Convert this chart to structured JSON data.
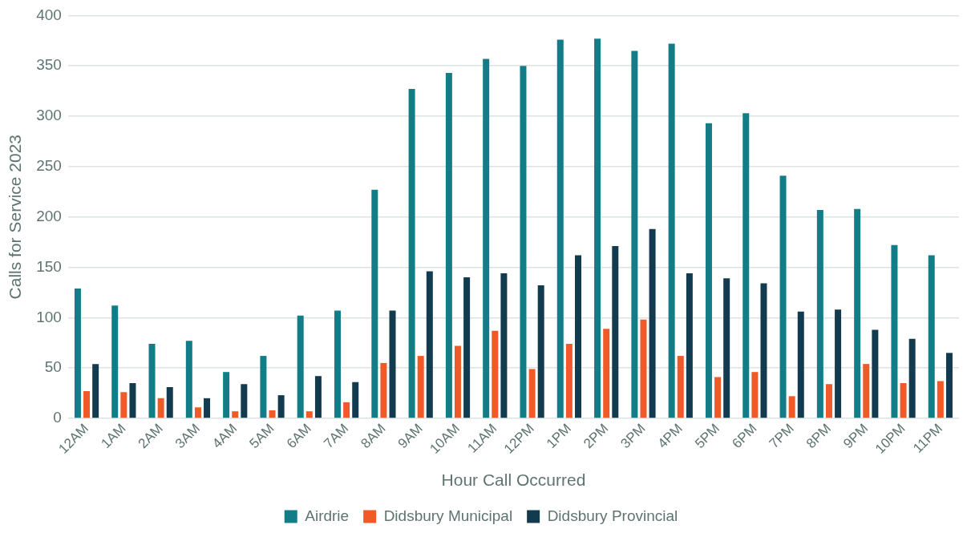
{
  "chart_data": {
    "type": "bar",
    "xlabel": "Hour Call Occurred",
    "ylabel": "Calls for Service 2023",
    "categories": [
      "12AM",
      "1AM",
      "2AM",
      "3AM",
      "4AM",
      "5AM",
      "6AM",
      "7AM",
      "8AM",
      "9AM",
      "10AM",
      "11AM",
      "12PM",
      "1PM",
      "2PM",
      "3PM",
      "4PM",
      "5PM",
      "6PM",
      "7PM",
      "8PM",
      "9PM",
      "10PM",
      "11PM"
    ],
    "series": [
      {
        "name": "Airdrie",
        "color": "#127d87",
        "values": [
          129,
          112,
          74,
          77,
          46,
          62,
          102,
          107,
          227,
          327,
          343,
          357,
          350,
          376,
          377,
          365,
          372,
          293,
          303,
          241,
          207,
          208,
          172,
          162
        ]
      },
      {
        "name": "Didsbury Municipal",
        "color": "#f05a28",
        "values": [
          27,
          26,
          20,
          11,
          7,
          8,
          7,
          16,
          55,
          62,
          72,
          87,
          49,
          74,
          89,
          98,
          62,
          41,
          46,
          22,
          34,
          54,
          35,
          37
        ]
      },
      {
        "name": "Didsbury Provincial",
        "color": "#123b4f",
        "values": [
          54,
          35,
          31,
          20,
          34,
          23,
          42,
          36,
          107,
          146,
          140,
          144,
          132,
          162,
          171,
          188,
          144,
          139,
          134,
          106,
          108,
          88,
          79,
          65
        ]
      }
    ],
    "ylim": [
      0,
      400
    ],
    "yticks": [
      0,
      50,
      100,
      150,
      200,
      250,
      300,
      350,
      400
    ],
    "grid": "y",
    "legend": "bottom"
  }
}
